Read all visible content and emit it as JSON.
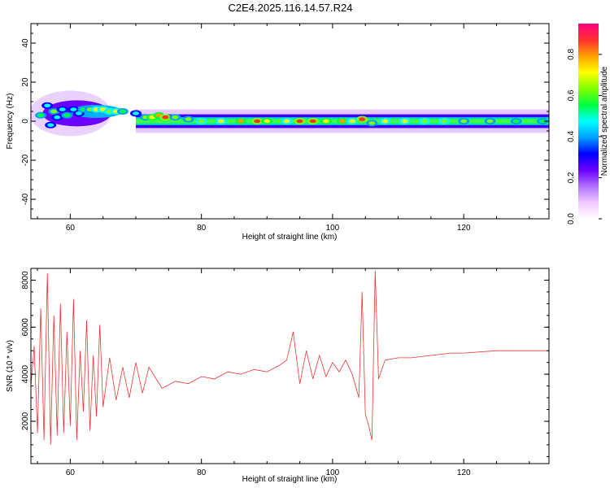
{
  "title": "C2E4.2025.116.14.57.R24",
  "chart_data": [
    {
      "type": "heatmap",
      "xlabel": "Height of straight line (km)",
      "ylabel": "Frequency (Hz)",
      "xlim": [
        54,
        133
      ],
      "ylim": [
        -50,
        50
      ],
      "x_ticks": [
        60,
        80,
        100,
        120
      ],
      "y_ticks": [
        -40,
        -20,
        0,
        20,
        40
      ],
      "colorbar": {
        "label": "Normalized spectral amplitude",
        "range": [
          0.0,
          0.95
        ],
        "ticks": [
          0.0,
          0.2,
          0.4,
          0.6,
          0.8
        ],
        "tick_labels": [
          "0.0",
          "0.2",
          "0.4",
          "0.6",
          "0.8"
        ],
        "colors": [
          "#ffffff",
          "#f0c8ff",
          "#b070ff",
          "#6a00ff",
          "#0000ff",
          "#00a0ff",
          "#00ffff",
          "#00ff40",
          "#80ff00",
          "#ffff00",
          "#ffa000",
          "#ff3030",
          "#ff0080"
        ]
      },
      "bursts": [
        {
          "x": 55.5,
          "f": 3,
          "a": 0.55
        },
        {
          "x": 56.5,
          "f": 8,
          "a": 0.45
        },
        {
          "x": 57.0,
          "f": -2,
          "a": 0.5
        },
        {
          "x": 57.5,
          "f": 5,
          "a": 0.6
        },
        {
          "x": 58.0,
          "f": 2,
          "a": 0.5
        },
        {
          "x": 58.8,
          "f": 6,
          "a": 0.5
        },
        {
          "x": 59.5,
          "f": 3,
          "a": 0.55
        },
        {
          "x": 60.5,
          "f": 6,
          "a": 0.5
        },
        {
          "x": 61.3,
          "f": 4,
          "a": 0.5
        },
        {
          "x": 62.0,
          "f": 6,
          "a": 0.55
        },
        {
          "x": 63.0,
          "f": 6,
          "a": 0.6
        },
        {
          "x": 64.0,
          "f": 6,
          "a": 0.7
        },
        {
          "x": 65.0,
          "f": 6,
          "a": 0.7
        },
        {
          "x": 66.0,
          "f": 5,
          "a": 0.65
        },
        {
          "x": 67.0,
          "f": 5,
          "a": 0.7
        },
        {
          "x": 68.0,
          "f": 5,
          "a": 0.55
        },
        {
          "x": 70.0,
          "f": 4,
          "a": 0.5
        },
        {
          "x": 71.5,
          "f": 2,
          "a": 0.6
        },
        {
          "x": 72.5,
          "f": 2,
          "a": 0.75
        },
        {
          "x": 73.5,
          "f": 3,
          "a": 0.8
        },
        {
          "x": 74.5,
          "f": 2,
          "a": 0.85
        },
        {
          "x": 76.0,
          "f": 2,
          "a": 0.6
        },
        {
          "x": 78.0,
          "f": 1,
          "a": 0.6
        },
        {
          "x": 80.0,
          "f": 0,
          "a": 0.65
        },
        {
          "x": 83.0,
          "f": 0,
          "a": 0.7
        },
        {
          "x": 86.0,
          "f": 0,
          "a": 0.8
        },
        {
          "x": 88.5,
          "f": 0,
          "a": 0.85
        },
        {
          "x": 90.0,
          "f": 0,
          "a": 0.75
        },
        {
          "x": 93.0,
          "f": 0,
          "a": 0.7
        },
        {
          "x": 95.0,
          "f": 0,
          "a": 0.85
        },
        {
          "x": 97.0,
          "f": 0,
          "a": 0.9
        },
        {
          "x": 99.0,
          "f": 0,
          "a": 0.75
        },
        {
          "x": 101.5,
          "f": 0,
          "a": 0.8
        },
        {
          "x": 103.0,
          "f": 0,
          "a": 0.7
        },
        {
          "x": 104.5,
          "f": 1,
          "a": 0.9
        },
        {
          "x": 106.0,
          "f": -1,
          "a": 0.6
        },
        {
          "x": 108.0,
          "f": 0,
          "a": 0.7
        },
        {
          "x": 111.0,
          "f": 0,
          "a": 0.7
        },
        {
          "x": 114.0,
          "f": 0,
          "a": 0.65
        },
        {
          "x": 117.0,
          "f": 0,
          "a": 0.65
        },
        {
          "x": 120.0,
          "f": 0,
          "a": 0.6
        },
        {
          "x": 124.0,
          "f": 0,
          "a": 0.6
        },
        {
          "x": 128.0,
          "f": 0,
          "a": 0.55
        },
        {
          "x": 132.0,
          "f": 0,
          "a": 0.55
        }
      ]
    },
    {
      "type": "line",
      "xlabel": "Height of straight line (km)",
      "ylabel": "SNR (10 * v/v)",
      "xlim": [
        54,
        133
      ],
      "ylim": [
        200,
        8500
      ],
      "x_ticks": [
        60,
        80,
        100,
        120
      ],
      "y_ticks": [
        2000,
        4000,
        6000,
        8000
      ],
      "color": "#ee3333",
      "series": [
        {
          "x": [
            54,
            54.5,
            55,
            55.5,
            56,
            56.5,
            57,
            57.5,
            58,
            58.5,
            59,
            59.5,
            60,
            60.5,
            61,
            61.5,
            62,
            62.5,
            63,
            63.5,
            64,
            64.5,
            65,
            66,
            67,
            68,
            69,
            70,
            71,
            72,
            74,
            76,
            78,
            80,
            82,
            84,
            86,
            88,
            90,
            92,
            93,
            94,
            95,
            96,
            97,
            98,
            99,
            100,
            101,
            102,
            103,
            104,
            104.5,
            105,
            105.5,
            106,
            106.5,
            107,
            108,
            110,
            112,
            115,
            118,
            120,
            125,
            130,
            133
          ],
          "y": [
            3500,
            5200,
            1500,
            6800,
            1200,
            8300,
            1000,
            6500,
            1400,
            7000,
            1500,
            5800,
            1800,
            7200,
            1200,
            5000,
            2400,
            6300,
            1600,
            4800,
            2200,
            6100,
            2600,
            4700,
            2900,
            4300,
            3000,
            4500,
            3200,
            4300,
            3400,
            3700,
            3600,
            3900,
            3800,
            4100,
            4000,
            4200,
            4100,
            4400,
            4600,
            5800,
            3600,
            5000,
            3800,
            4800,
            3900,
            4500,
            4100,
            4600,
            4000,
            3000,
            7500,
            2300,
            1800,
            1200,
            8400,
            3800,
            4600,
            4700,
            4700,
            4800,
            4900,
            4900,
            5000,
            5000,
            5000
          ]
        }
      ]
    }
  ]
}
